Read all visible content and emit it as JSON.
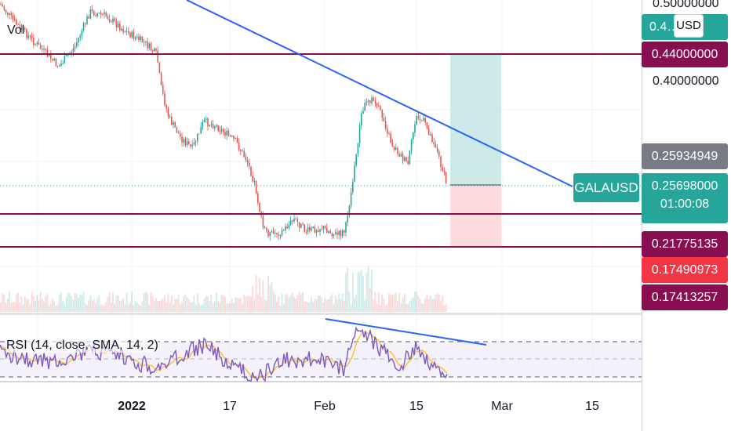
{
  "chart_data": [
    {
      "type": "candlestick",
      "symbol": "GALAUSD",
      "currency": "USD",
      "price_axis_labels": [
        "0.50000000",
        "0.40000000"
      ],
      "horizontal_levels": [
        0.44,
        0.21775135,
        0.17413257
      ],
      "price_tags": [
        {
          "value": "0.4…296",
          "color": "#26a69a"
        },
        {
          "value": "0.44000000",
          "color": "#880e4f"
        },
        {
          "value": "0.25934949",
          "color": "#787b86"
        },
        {
          "value": "0.25698000",
          "color": "#26a69a",
          "countdown": "01:00:08"
        },
        {
          "value": "0.21775135",
          "color": "#880e4f"
        },
        {
          "value": "0.17490973",
          "color": "#f23645"
        },
        {
          "value": "0.17413257",
          "color": "#880e4f"
        }
      ],
      "x_tick_labels": [
        "2022",
        "17",
        "Feb",
        "15",
        "Mar",
        "15"
      ],
      "position_tool": {
        "entry": 0.25698,
        "target": 0.44,
        "stop": 0.21775135
      },
      "trendline": "descending resistance",
      "volume_label": "Vol"
    },
    {
      "type": "line",
      "indicator": "RSI (14, close, SMA, 14, 2)",
      "bands": [
        70,
        50,
        30
      ],
      "series": [
        "RSI",
        "RSI-based MA"
      ],
      "divergence_line": "bearish divergence"
    }
  ]
}
